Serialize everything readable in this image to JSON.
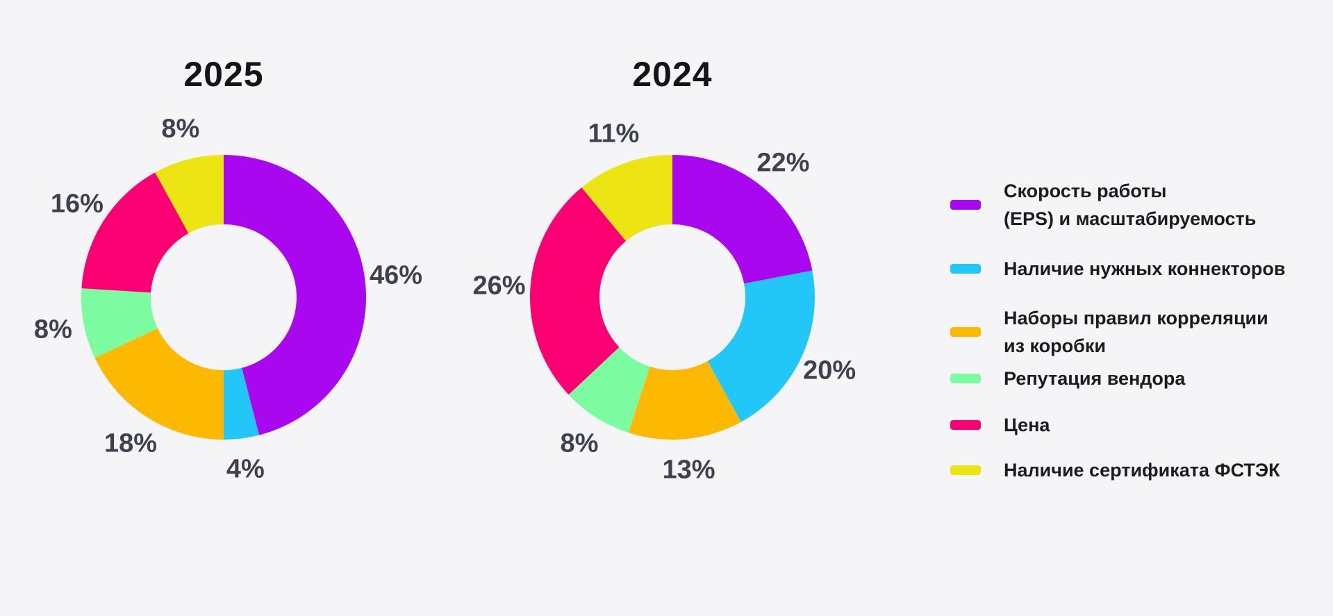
{
  "page": {
    "background": "#F5F5F8"
  },
  "palette": {
    "purple": "#A807F0",
    "blue": "#22C7F8",
    "orange": "#FDB802",
    "green": "#7DFBA0",
    "pink": "#FA0073",
    "yellow": "#EDE414"
  },
  "text_colors": {
    "title": "#141419",
    "slice_label": "#3E414E",
    "legend": "#1B1C20"
  },
  "chart_data": [
    {
      "type": "pie",
      "subtype": "donut",
      "title": "2025",
      "categories": [
        "Скорость работы (EPS) и масштабируемость",
        "Наличие нужных коннекторов",
        "Наборы правил корреляции из коробки",
        "Репутация вендора",
        "Цена",
        "Наличие сертификата ФСТЭК"
      ],
      "values": [
        46,
        4,
        18,
        8,
        16,
        8
      ],
      "slice_labels": [
        "46%",
        "4%",
        "18%",
        "8%",
        "16%",
        "8%"
      ],
      "colors": [
        "#A807F0",
        "#22C7F8",
        "#FDB802",
        "#7DFBA0",
        "#FA0073",
        "#EDE414"
      ],
      "start_angle_deg": 0,
      "direction": "clockwise",
      "legend_position": "right"
    },
    {
      "type": "pie",
      "subtype": "donut",
      "title": "2024",
      "categories": [
        "Скорость работы (EPS) и масштабируемость",
        "Наличие нужных коннекторов",
        "Наборы правил корреляции из коробки",
        "Репутация вендора",
        "Цена",
        "Наличие сертификата ФСТЭК"
      ],
      "values": [
        22,
        20,
        13,
        8,
        26,
        11
      ],
      "slice_labels": [
        "22%",
        "20%",
        "13%",
        "8%",
        "26%",
        "11%"
      ],
      "colors": [
        "#A807F0",
        "#22C7F8",
        "#FDB802",
        "#7DFBA0",
        "#FA0073",
        "#EDE414"
      ],
      "start_angle_deg": 0,
      "direction": "clockwise",
      "legend_position": "right"
    }
  ],
  "legend": {
    "items": [
      {
        "label": "Скорость работы\n(EPS) и масштабируемость",
        "color": "#A807F0",
        "color_name": "purple"
      },
      {
        "label": "Наличие нужных коннекторов",
        "color": "#22C7F8",
        "color_name": "blue"
      },
      {
        "label": "Наборы правил корреляции\nиз коробки",
        "color": "#FDB802",
        "color_name": "orange"
      },
      {
        "label": "Репутация вендора",
        "color": "#7DFBA0",
        "color_name": "green"
      },
      {
        "label": "Цена",
        "color": "#FA0073",
        "color_name": "pink"
      },
      {
        "label": "Наличие сертификата ФСТЭК",
        "color": "#EDE414",
        "color_name": "yellow"
      }
    ]
  }
}
